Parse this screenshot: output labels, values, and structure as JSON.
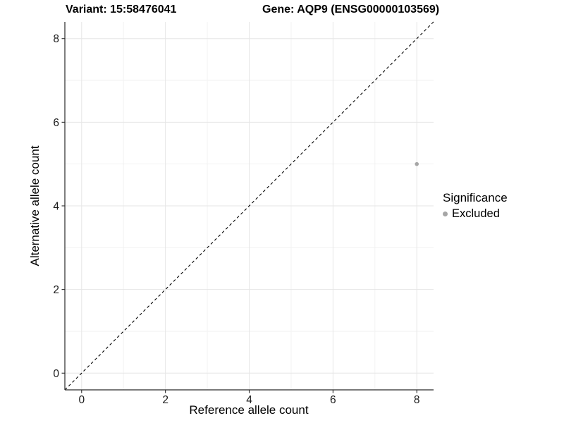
{
  "titles": {
    "variant": "Variant: 15:58476041",
    "gene": "Gene: AQP9 (ENSG00000103569)"
  },
  "chart_data": {
    "type": "scatter",
    "xlabel": "Reference allele count",
    "ylabel": "Alternative allele count",
    "xlim": [
      -0.4,
      8.4
    ],
    "ylim": [
      -0.4,
      8.4
    ],
    "xticks": [
      0,
      2,
      4,
      6,
      8
    ],
    "yticks": [
      0,
      2,
      4,
      6,
      8
    ],
    "xticks_minor": [
      1,
      3,
      5,
      7
    ],
    "yticks_minor": [
      1,
      3,
      5,
      7
    ],
    "grid": true,
    "points": [
      {
        "x": 8,
        "y": 5,
        "significance": "Excluded"
      }
    ],
    "reference_line": {
      "type": "identity",
      "style": "dashed"
    },
    "legend": {
      "title": "Significance",
      "position": "right",
      "entries": [
        {
          "label": "Excluded",
          "color": "#a6a6a6"
        }
      ]
    }
  },
  "colors": {
    "point": "#a6a6a6",
    "grid_major": "#e6e6e6",
    "grid_minor": "#f2f2f2",
    "axis": "#2a2a2a",
    "tick_text": "#1a1a1a",
    "reference_line": "#000000",
    "background": "#ffffff"
  }
}
